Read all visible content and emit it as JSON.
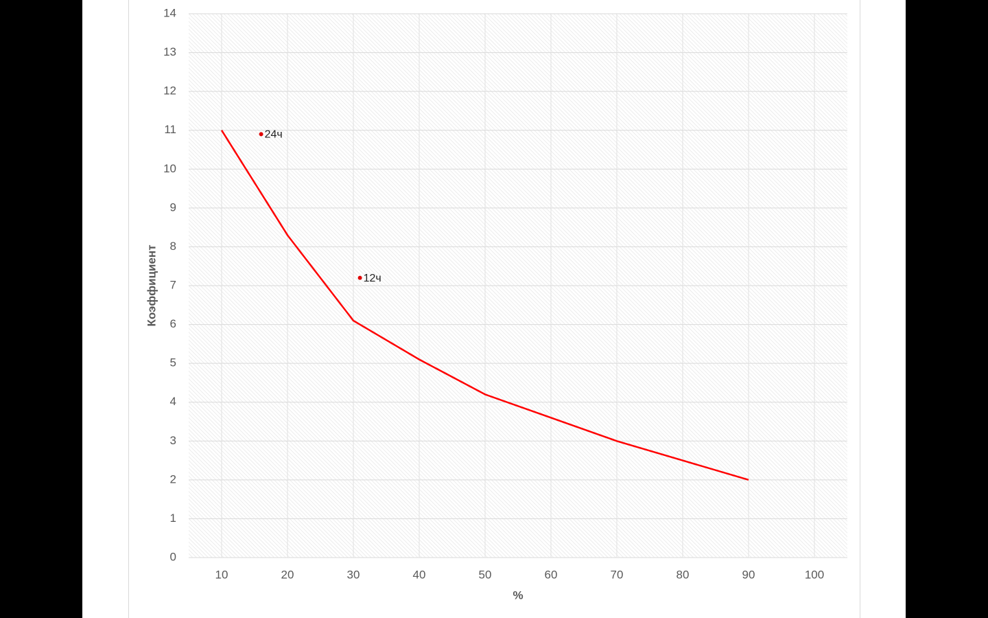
{
  "chart_data": {
    "type": "line",
    "xlabel": "%",
    "ylabel": "Коэффициент",
    "x": [
      10,
      20,
      30,
      40,
      50,
      60,
      70,
      80,
      90
    ],
    "values": [
      11,
      8.3,
      6.1,
      5.1,
      4.2,
      3.6,
      3.0,
      2.5,
      2.0
    ],
    "color": "#ff0000",
    "points": [
      {
        "x": 16,
        "y": 10.9,
        "label": "24ч"
      },
      {
        "x": 31,
        "y": 7.2,
        "label": "12ч"
      }
    ],
    "points_color": "#e00000",
    "xlim": [
      5,
      105
    ],
    "xticks": [
      10,
      20,
      30,
      40,
      50,
      60,
      70,
      80,
      90,
      100
    ],
    "ylim": [
      0,
      14
    ],
    "yticks": [
      0,
      1,
      2,
      3,
      4,
      5,
      6,
      7,
      8,
      9,
      10,
      11,
      12,
      13,
      14
    ],
    "grid": true
  }
}
